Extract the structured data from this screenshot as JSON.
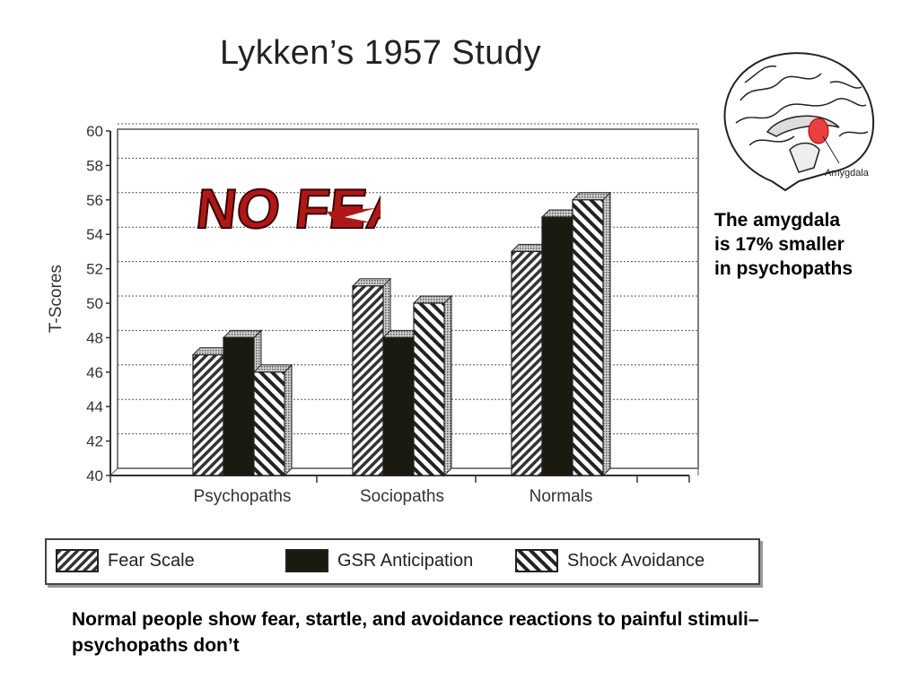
{
  "chart_data": {
    "type": "bar",
    "title": "Lykken’s 1957 Study",
    "ylabel": "T-Scores",
    "xlabel": "",
    "ylim": [
      40,
      60
    ],
    "yticks": [
      "60",
      "58",
      "56",
      "54",
      "52",
      "50",
      "48",
      "46",
      "44",
      "42",
      "40"
    ],
    "categories": [
      "Psychopaths",
      "Sociopaths",
      "Normals"
    ],
    "series": [
      {
        "name": "Fear Scale",
        "values": [
          47,
          51,
          53
        ]
      },
      {
        "name": "GSR Anticipation",
        "values": [
          48,
          48,
          55
        ]
      },
      {
        "name": "Shock Avoidance",
        "values": [
          46,
          50,
          56
        ]
      }
    ],
    "grid": true,
    "legend": "bottom"
  },
  "logo": {
    "text": "NO FEAR"
  },
  "brain": {
    "label": "Amygdala"
  },
  "note_lines": [
    "The amygdala",
    "is 17% smaller",
    "in psychopaths"
  ],
  "caption": "Normal people show fear, startle, and avoidance reactions to painful stimuli– psychopaths don’t"
}
